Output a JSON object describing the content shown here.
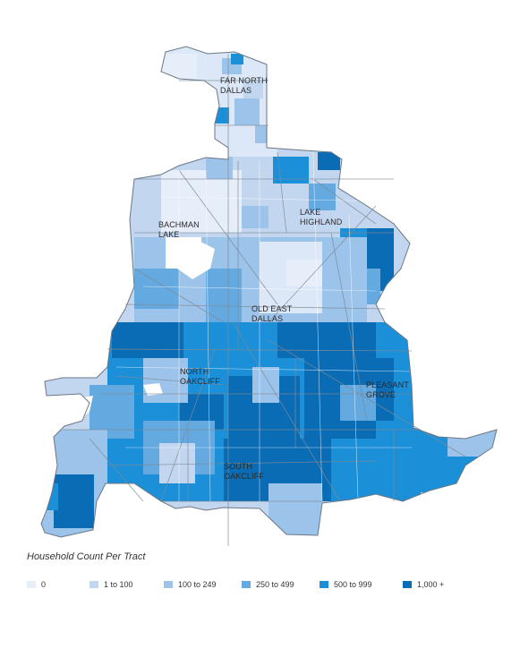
{
  "map": {
    "areas": [
      "FAR NORTH",
      "DALLAS",
      "LAKE",
      "HIGHLAND",
      "BACHMAN",
      "LAKE",
      "OLD EAST",
      "DALLAS",
      "NORTH",
      "OAKCLIFF",
      "PLEASANT",
      "GROVE",
      "SOUTH",
      "OAKCLIFF"
    ]
  },
  "legend": {
    "title": "Household Count Per Tract",
    "items": [
      {
        "label": "0",
        "color": "#e6eefa"
      },
      {
        "label": "1 to 100",
        "color": "#c2d7ef"
      },
      {
        "label": "100 to 249",
        "color": "#9cc3ea"
      },
      {
        "label": "250 to 499",
        "color": "#64a9e0"
      },
      {
        "label": "500 to 999",
        "color": "#1b8fd8"
      },
      {
        "label": "1,000 +",
        "color": "#0a6cb4"
      }
    ]
  }
}
